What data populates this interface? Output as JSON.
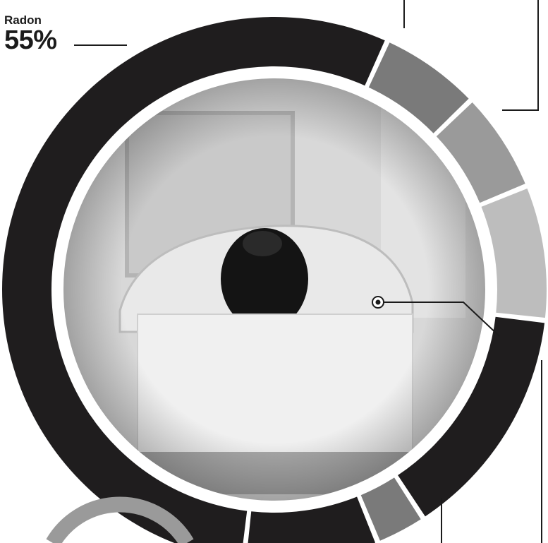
{
  "chart_data": {
    "type": "pie",
    "variant": "donut",
    "slices": [
      {
        "label": "Radon",
        "value": 55,
        "display": "55%",
        "color": "#1f1d1e"
      },
      {
        "label": "",
        "value": 6,
        "color": "#7a7a7a"
      },
      {
        "label": "",
        "value": 6,
        "color": "#9a9a9a"
      },
      {
        "label": "",
        "value": 8,
        "color": "#bdbdbd"
      },
      {
        "label": "",
        "value": 14,
        "color": "#1f1d1e"
      },
      {
        "label": "",
        "value": 3,
        "color": "#7a7a7a"
      },
      {
        "label": "",
        "value": 8,
        "color": "#1f1d1e"
      }
    ],
    "center_image": "photo-person-lying-in-medical-scanner"
  },
  "colors": {
    "dark": "#1f1d1e",
    "mid_gray": "#7a7a7a",
    "light_gray": "#9a9a9a",
    "pale_gray": "#bdbdbd",
    "photo_bg": "#dcdcdc"
  }
}
